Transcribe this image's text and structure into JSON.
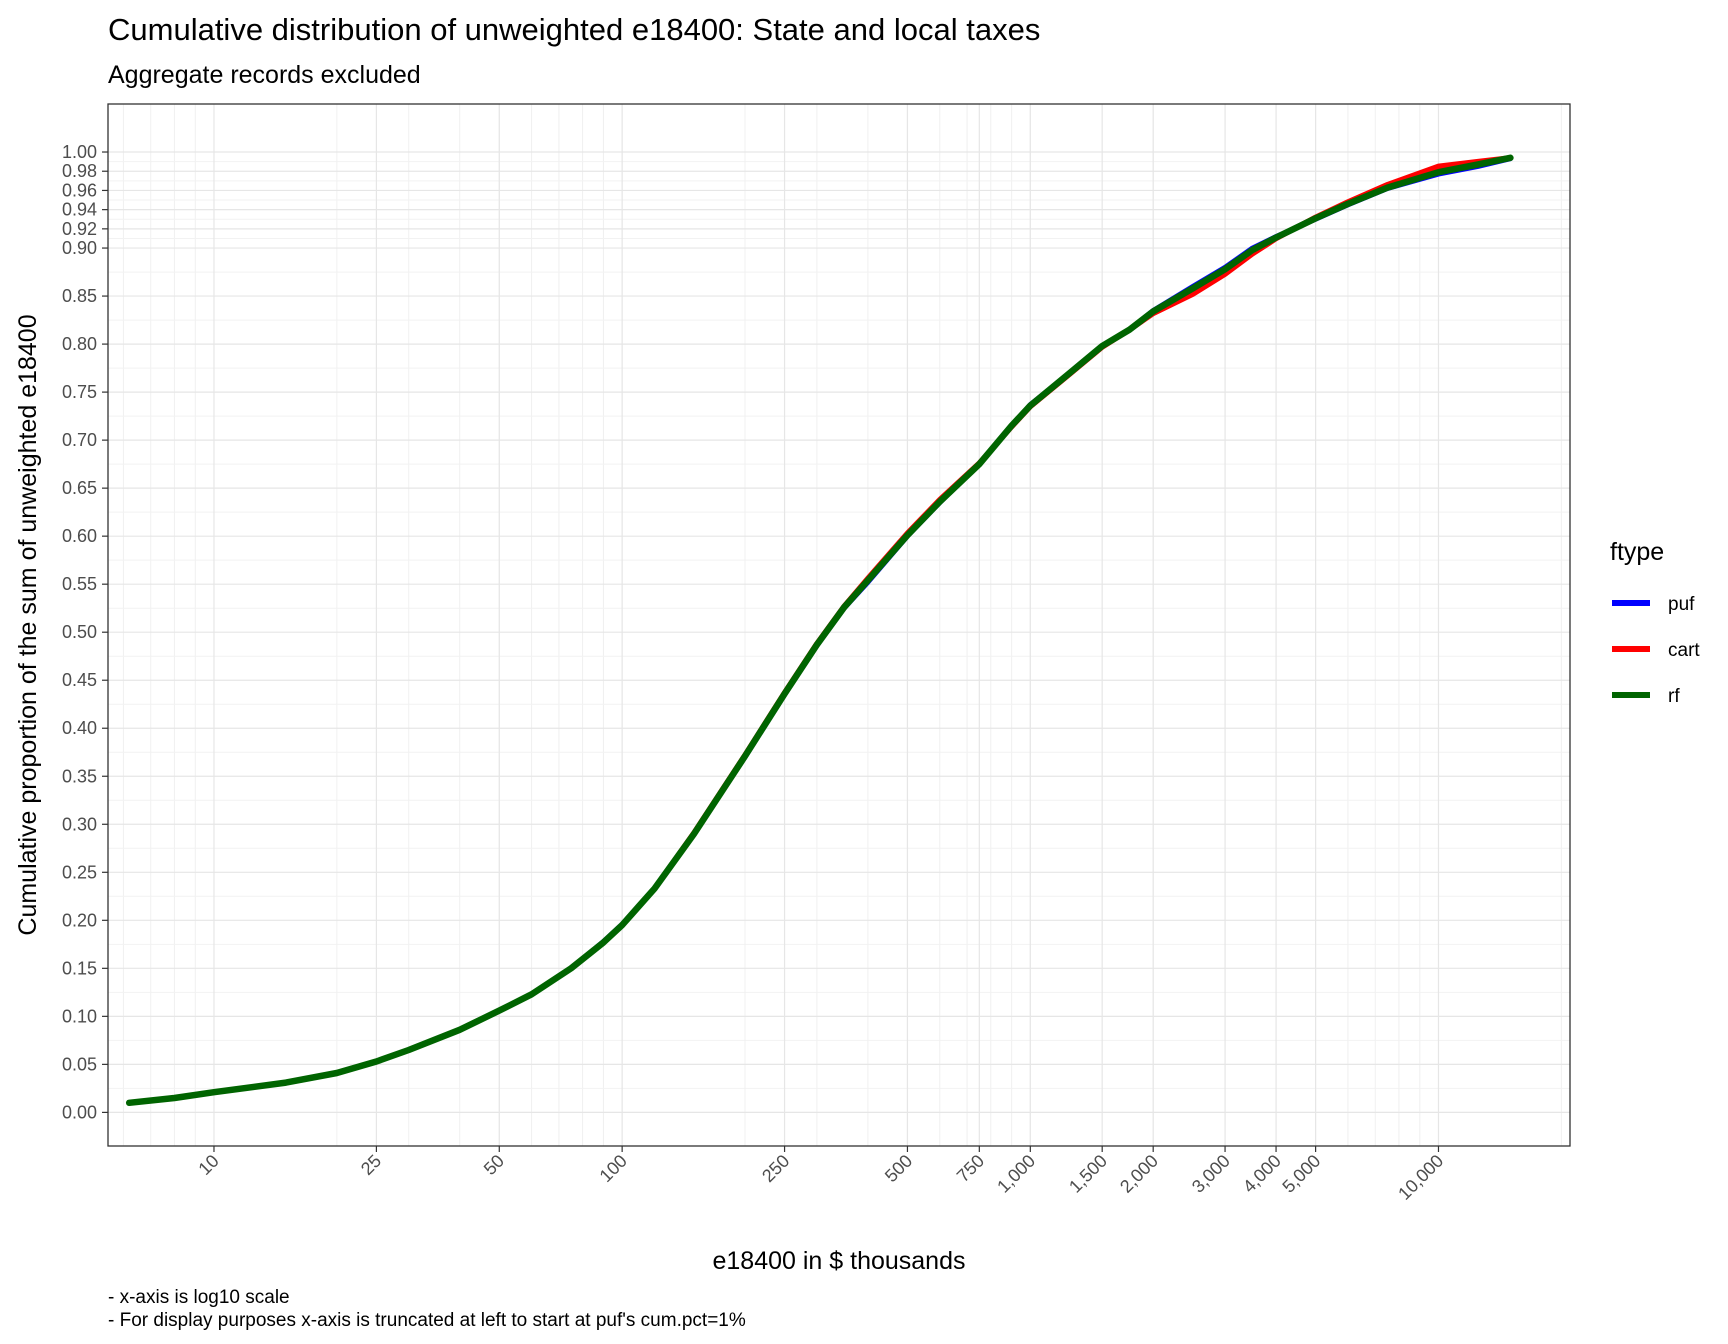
{
  "chart_data": {
    "type": "line",
    "title": "Cumulative distribution of unweighted e18400: State and local taxes",
    "subtitle": "Aggregate records excluded",
    "xlabel": "e18400 in $ thousands",
    "ylabel": "Cumulative proportion of the sum of unweighted e18400",
    "x_scale": "log10",
    "xlim": [
      5.5,
      21000
    ],
    "ylim": [
      -0.035,
      1.05
    ],
    "x_ticks": [
      {
        "value": 10,
        "label": "10"
      },
      {
        "value": 25,
        "label": "25"
      },
      {
        "value": 50,
        "label": "50"
      },
      {
        "value": 100,
        "label": "100"
      },
      {
        "value": 250,
        "label": "250"
      },
      {
        "value": 500,
        "label": "500"
      },
      {
        "value": 750,
        "label": "750"
      },
      {
        "value": 1000,
        "label": "1,000"
      },
      {
        "value": 1500,
        "label": "1,500"
      },
      {
        "value": 2000,
        "label": "2,000"
      },
      {
        "value": 3000,
        "label": "3,000"
      },
      {
        "value": 4000,
        "label": "4,000"
      },
      {
        "value": 5000,
        "label": "5,000"
      },
      {
        "value": 10000,
        "label": "10,000"
      }
    ],
    "y_ticks": [
      {
        "value": 0.0,
        "label": "0.00"
      },
      {
        "value": 0.05,
        "label": "0.05"
      },
      {
        "value": 0.1,
        "label": "0.10"
      },
      {
        "value": 0.15,
        "label": "0.15"
      },
      {
        "value": 0.2,
        "label": "0.20"
      },
      {
        "value": 0.25,
        "label": "0.25"
      },
      {
        "value": 0.3,
        "label": "0.30"
      },
      {
        "value": 0.35,
        "label": "0.35"
      },
      {
        "value": 0.4,
        "label": "0.40"
      },
      {
        "value": 0.45,
        "label": "0.45"
      },
      {
        "value": 0.5,
        "label": "0.50"
      },
      {
        "value": 0.55,
        "label": "0.55"
      },
      {
        "value": 0.6,
        "label": "0.60"
      },
      {
        "value": 0.65,
        "label": "0.65"
      },
      {
        "value": 0.7,
        "label": "0.70"
      },
      {
        "value": 0.75,
        "label": "0.75"
      },
      {
        "value": 0.8,
        "label": "0.80"
      },
      {
        "value": 0.85,
        "label": "0.85"
      },
      {
        "value": 0.9,
        "label": "0.90"
      },
      {
        "value": 0.92,
        "label": "0.92"
      },
      {
        "value": 0.94,
        "label": "0.94"
      },
      {
        "value": 0.96,
        "label": "0.96"
      },
      {
        "value": 0.98,
        "label": "0.98"
      },
      {
        "value": 1.0,
        "label": "1.00"
      }
    ],
    "grid": true,
    "legend": {
      "title": "ftype",
      "placement": "right"
    },
    "series": [
      {
        "name": "puf",
        "color": "#0000ff",
        "points": [
          [
            6.2,
            0.01
          ],
          [
            8,
            0.015
          ],
          [
            10,
            0.021
          ],
          [
            15,
            0.031
          ],
          [
            20,
            0.041
          ],
          [
            25,
            0.053
          ],
          [
            30,
            0.065
          ],
          [
            40,
            0.086
          ],
          [
            50,
            0.106
          ],
          [
            60,
            0.123
          ],
          [
            75,
            0.15
          ],
          [
            90,
            0.178
          ],
          [
            100,
            0.196
          ],
          [
            120,
            0.233
          ],
          [
            150,
            0.29
          ],
          [
            200,
            0.37
          ],
          [
            250,
            0.435
          ],
          [
            300,
            0.486
          ],
          [
            350,
            0.525
          ],
          [
            400,
            0.552
          ],
          [
            500,
            0.6
          ],
          [
            600,
            0.635
          ],
          [
            750,
            0.675
          ],
          [
            900,
            0.715
          ],
          [
            1000,
            0.737
          ],
          [
            1250,
            0.77
          ],
          [
            1500,
            0.798
          ],
          [
            1750,
            0.815
          ],
          [
            2000,
            0.835
          ],
          [
            2500,
            0.86
          ],
          [
            3000,
            0.88
          ],
          [
            3500,
            0.9
          ],
          [
            4000,
            0.912
          ],
          [
            5000,
            0.93
          ],
          [
            6000,
            0.945
          ],
          [
            7500,
            0.962
          ],
          [
            10000,
            0.977
          ],
          [
            12500,
            0.985
          ],
          [
            15000,
            0.993
          ]
        ]
      },
      {
        "name": "cart",
        "color": "#ff0000",
        "points": [
          [
            6.2,
            0.01
          ],
          [
            8,
            0.015
          ],
          [
            10,
            0.021
          ],
          [
            15,
            0.031
          ],
          [
            20,
            0.041
          ],
          [
            25,
            0.053
          ],
          [
            30,
            0.065
          ],
          [
            40,
            0.086
          ],
          [
            50,
            0.106
          ],
          [
            60,
            0.123
          ],
          [
            75,
            0.15
          ],
          [
            90,
            0.177
          ],
          [
            100,
            0.195
          ],
          [
            120,
            0.233
          ],
          [
            150,
            0.291
          ],
          [
            200,
            0.372
          ],
          [
            250,
            0.437
          ],
          [
            300,
            0.488
          ],
          [
            350,
            0.527
          ],
          [
            400,
            0.556
          ],
          [
            500,
            0.603
          ],
          [
            600,
            0.638
          ],
          [
            750,
            0.676
          ],
          [
            900,
            0.714
          ],
          [
            1000,
            0.735
          ],
          [
            1250,
            0.769
          ],
          [
            1500,
            0.797
          ],
          [
            1750,
            0.815
          ],
          [
            2000,
            0.832
          ],
          [
            2500,
            0.852
          ],
          [
            3000,
            0.873
          ],
          [
            3500,
            0.894
          ],
          [
            4000,
            0.91
          ],
          [
            5000,
            0.932
          ],
          [
            6000,
            0.948
          ],
          [
            7500,
            0.966
          ],
          [
            10000,
            0.985
          ],
          [
            12500,
            0.99
          ],
          [
            15000,
            0.994
          ]
        ]
      },
      {
        "name": "rf",
        "color": "#006400",
        "points": [
          [
            6.2,
            0.01
          ],
          [
            8,
            0.015
          ],
          [
            10,
            0.021
          ],
          [
            15,
            0.031
          ],
          [
            20,
            0.041
          ],
          [
            25,
            0.053
          ],
          [
            30,
            0.065
          ],
          [
            40,
            0.086
          ],
          [
            50,
            0.106
          ],
          [
            60,
            0.123
          ],
          [
            75,
            0.15
          ],
          [
            90,
            0.177
          ],
          [
            100,
            0.195
          ],
          [
            120,
            0.233
          ],
          [
            150,
            0.29
          ],
          [
            200,
            0.371
          ],
          [
            250,
            0.436
          ],
          [
            300,
            0.487
          ],
          [
            350,
            0.526
          ],
          [
            400,
            0.554
          ],
          [
            500,
            0.601
          ],
          [
            600,
            0.636
          ],
          [
            750,
            0.675
          ],
          [
            900,
            0.715
          ],
          [
            1000,
            0.736
          ],
          [
            1250,
            0.77
          ],
          [
            1500,
            0.798
          ],
          [
            1750,
            0.815
          ],
          [
            2000,
            0.834
          ],
          [
            2500,
            0.858
          ],
          [
            3000,
            0.878
          ],
          [
            3500,
            0.898
          ],
          [
            4000,
            0.911
          ],
          [
            5000,
            0.931
          ],
          [
            6000,
            0.946
          ],
          [
            7500,
            0.963
          ],
          [
            10000,
            0.979
          ],
          [
            12500,
            0.987
          ],
          [
            15000,
            0.994
          ]
        ]
      }
    ],
    "captions": [
      "- x-axis is log10 scale",
      "- For display purposes x-axis is truncated at left to start at puf's cum.pct=1%"
    ]
  }
}
